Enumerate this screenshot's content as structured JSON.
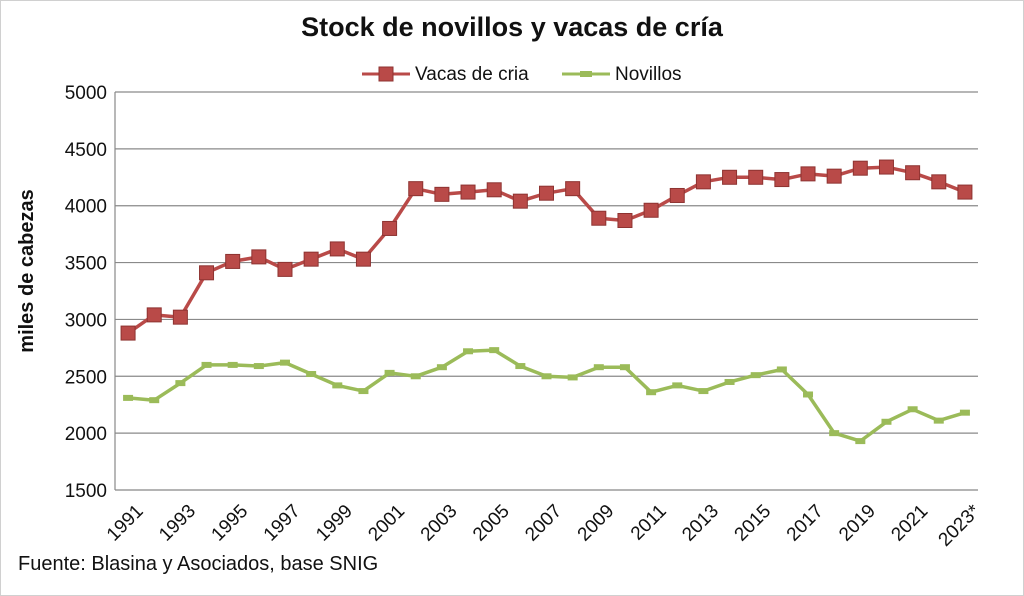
{
  "chart_data": {
    "type": "line",
    "title": "Stock de novillos y vacas de cría",
    "ylabel": "miles de cabezas",
    "xlabel": "",
    "ylim": [
      1500,
      5000
    ],
    "yticks": [
      1500,
      2000,
      2500,
      3000,
      3500,
      4000,
      4500,
      5000
    ],
    "x": [
      "1991",
      "1992",
      "1993",
      "1994",
      "1995",
      "1996",
      "1997",
      "1998",
      "1999",
      "2000",
      "2001",
      "2002",
      "2003",
      "2004",
      "2005",
      "2006",
      "2007",
      "2008",
      "2009",
      "2010",
      "2011",
      "2012",
      "2013",
      "2014",
      "2015",
      "2016",
      "2017",
      "2018",
      "2019",
      "2020",
      "2021",
      "2022",
      "2023*"
    ],
    "xtick_labels": [
      "1991",
      "1993",
      "1995",
      "1997",
      "1999",
      "2001",
      "2003",
      "2005",
      "2007",
      "2009",
      "2011",
      "2013",
      "2015",
      "2017",
      "2019",
      "2021",
      "2023*"
    ],
    "grid": "horizontal",
    "legend_position": "top-center",
    "series": [
      {
        "name": "Vacas de cria",
        "color": "#b94a48",
        "marker": "square",
        "values": [
          2880,
          3040,
          3020,
          3410,
          3510,
          3550,
          3440,
          3530,
          3620,
          3530,
          3800,
          4150,
          4100,
          4120,
          4140,
          4040,
          4110,
          4150,
          3890,
          3870,
          3960,
          4090,
          4210,
          4250,
          4250,
          4230,
          4280,
          4260,
          4330,
          4340,
          4290,
          4210,
          4120
        ]
      },
      {
        "name": "Novillos",
        "color": "#9bbb59",
        "marker": "dash",
        "values": [
          2310,
          2290,
          2440,
          2600,
          2600,
          2590,
          2620,
          2520,
          2420,
          2370,
          2530,
          2500,
          2580,
          2720,
          2730,
          2590,
          2500,
          2490,
          2580,
          2580,
          2360,
          2420,
          2370,
          2450,
          2510,
          2560,
          2340,
          2000,
          1930,
          2100,
          2210,
          2110,
          2180
        ]
      }
    ],
    "source": "Fuente: Blasina y Asociados, base  SNIG"
  }
}
